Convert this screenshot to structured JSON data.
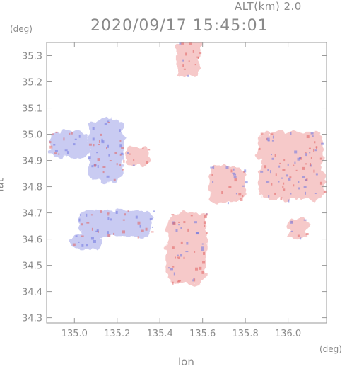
{
  "header": {
    "altitude_label": "ALT(km) 2.0",
    "timestamp": "2020/09/17 15:45:01"
  },
  "axes": {
    "x_unit": "(deg)",
    "y_unit": "(deg)",
    "x_title": "lon",
    "y_title": "lat",
    "x_ticks": [
      {
        "value": 135.0,
        "label": "135.0"
      },
      {
        "value": 135.2,
        "label": "135.2"
      },
      {
        "value": 135.4,
        "label": "135.4"
      },
      {
        "value": 135.6,
        "label": "135.6"
      },
      {
        "value": 135.8,
        "label": "135.8"
      },
      {
        "value": 136.0,
        "label": "136.0"
      }
    ],
    "y_ticks": [
      {
        "value": 34.3,
        "label": "34.3"
      },
      {
        "value": 34.4,
        "label": "34.4"
      },
      {
        "value": 34.5,
        "label": "34.5"
      },
      {
        "value": 34.6,
        "label": "34.6"
      },
      {
        "value": 34.7,
        "label": "34.7"
      },
      {
        "value": 34.8,
        "label": "34.8"
      },
      {
        "value": 34.9,
        "label": "34.9"
      },
      {
        "value": 35.0,
        "label": "35.0"
      },
      {
        "value": 35.1,
        "label": "35.1"
      },
      {
        "value": 35.2,
        "label": "35.2"
      },
      {
        "value": 35.3,
        "label": "35.3"
      }
    ],
    "x_range": [
      134.87,
      136.18
    ],
    "y_range": [
      34.28,
      35.35
    ]
  },
  "colors": {
    "frame": "#9a9a9a",
    "negative_fill": "#c9cbf2",
    "positive_fill": "#f6c9c9",
    "negative_strong": "#6e74e0",
    "positive_strong": "#e06060"
  },
  "map_regions": [
    {
      "sign": "positive",
      "lon": [
        135.48,
        135.59
      ],
      "lat": [
        35.22,
        35.36
      ]
    },
    {
      "sign": "negative",
      "lon": [
        134.88,
        135.07
      ],
      "lat": [
        34.91,
        35.01
      ]
    },
    {
      "sign": "negative",
      "lon": [
        135.07,
        135.23
      ],
      "lat": [
        34.82,
        35.06
      ]
    },
    {
      "sign": "positive",
      "lon": [
        135.24,
        135.35
      ],
      "lat": [
        34.88,
        34.95
      ]
    },
    {
      "sign": "negative",
      "lon": [
        135.02,
        135.37
      ],
      "lat": [
        34.61,
        34.71
      ]
    },
    {
      "sign": "negative",
      "lon": [
        134.98,
        135.13
      ],
      "lat": [
        34.56,
        34.62
      ]
    },
    {
      "sign": "positive",
      "lon": [
        135.43,
        135.62
      ],
      "lat": [
        34.43,
        34.7
      ]
    },
    {
      "sign": "positive",
      "lon": [
        135.63,
        135.8
      ],
      "lat": [
        34.74,
        34.88
      ]
    },
    {
      "sign": "positive",
      "lon": [
        135.86,
        136.17
      ],
      "lat": [
        34.88,
        35.01
      ]
    },
    {
      "sign": "positive",
      "lon": [
        135.86,
        136.17
      ],
      "lat": [
        34.75,
        34.89
      ]
    },
    {
      "sign": "positive",
      "lon": [
        136.0,
        136.09
      ],
      "lat": [
        34.6,
        34.68
      ]
    }
  ]
}
